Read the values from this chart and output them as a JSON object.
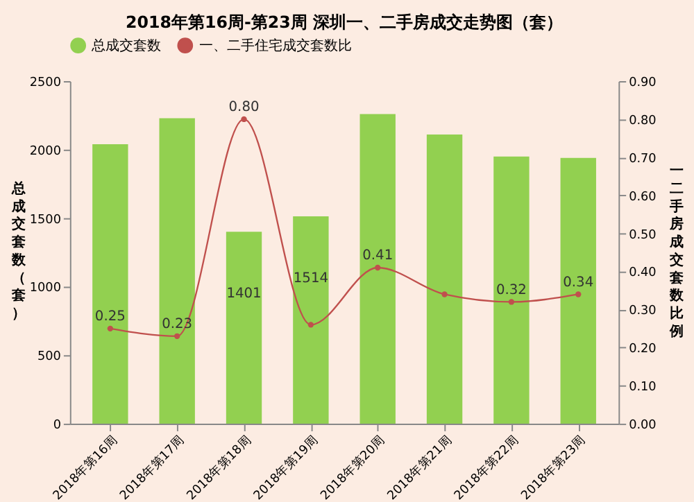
{
  "chart_data": {
    "type": "bar",
    "title": "2018年第16周-第23周 深圳一、二手房成交走势图（套）",
    "categories": [
      "2018年第16周",
      "2018年第17周",
      "2018年第18周",
      "2018年第19周",
      "2018年第20周",
      "2018年第21周",
      "2018年第22周",
      "2018年第23周"
    ],
    "series": [
      {
        "name": "总成交套数",
        "color": "#92d050",
        "values": [
          2040,
          2230,
          1401,
          1514,
          2260,
          2110,
          1950,
          1940
        ],
        "value_labels": [
          null,
          null,
          "1401",
          "1514",
          null,
          null,
          null,
          null
        ]
      },
      {
        "name": "一、二手住宅成交套数比",
        "type": "line",
        "axis": "y2",
        "color": "#c0504d",
        "marker": "circle",
        "values": [
          0.25,
          0.23,
          0.8,
          0.26,
          0.41,
          0.34,
          0.32,
          0.34
        ],
        "value_labels": [
          "0.25",
          "0.23",
          "0.80",
          null,
          "0.41",
          null,
          "0.32",
          "0.34"
        ]
      }
    ],
    "ylabel": "总成交套数（套）",
    "y2label": "一二手房成交套数比例",
    "ylim": [
      0,
      2500
    ],
    "yticks": [
      0,
      500,
      1000,
      1500,
      2000,
      2500
    ],
    "y2lim": [
      0,
      0.9
    ],
    "y2ticks": [
      {
        "value": 0,
        "label": "0.00"
      },
      {
        "value": 0.1,
        "label": "0.10"
      },
      {
        "value": 0.2,
        "label": "0.20"
      },
      {
        "value": 0.3,
        "label": "0.30"
      },
      {
        "value": 0.4,
        "label": "0.40"
      },
      {
        "value": 0.5,
        "label": "0.50"
      },
      {
        "value": 0.6,
        "label": "0.60"
      },
      {
        "value": 0.7,
        "label": "0.70"
      },
      {
        "value": 0.8,
        "label": "0.80"
      },
      {
        "value": 0.9,
        "label": "0.90"
      }
    ],
    "grid": false,
    "legend": "top"
  }
}
